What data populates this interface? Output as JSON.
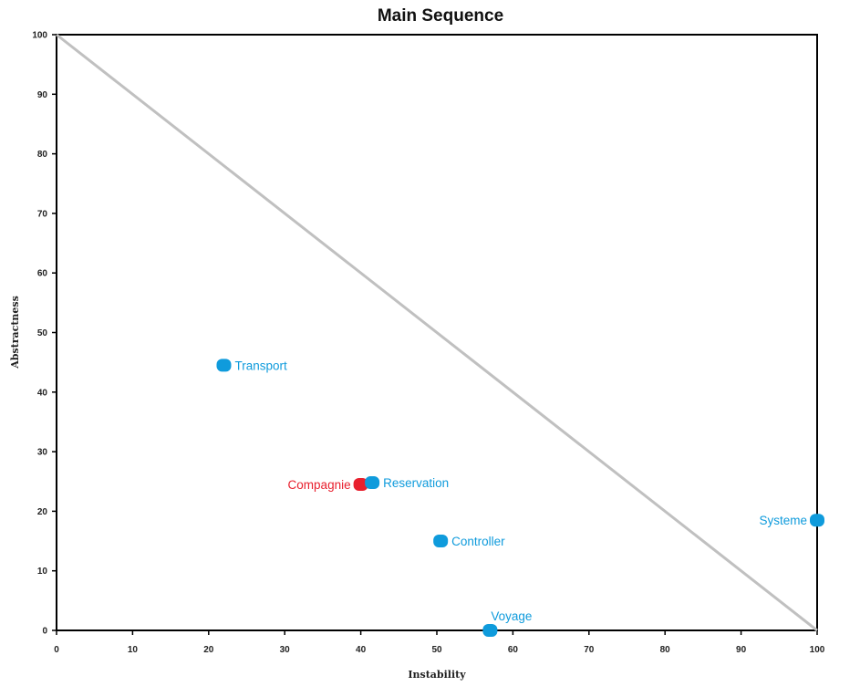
{
  "chart_data": {
    "type": "scatter",
    "title": "Main Sequence",
    "xlabel": "Instability",
    "ylabel": "Abstractness",
    "xlim": [
      0,
      100
    ],
    "ylim": [
      0,
      100
    ],
    "xticks": [
      "0",
      "10",
      "20",
      "30",
      "40",
      "50",
      "60",
      "70",
      "80",
      "90",
      "100"
    ],
    "yticks": [
      "0",
      "10",
      "20",
      "30",
      "40",
      "50",
      "60",
      "70",
      "80",
      "90",
      "100"
    ],
    "grid": false,
    "reference_line": {
      "from": [
        0,
        100
      ],
      "to": [
        100,
        0
      ],
      "color": "#c0c0c0"
    },
    "points": [
      {
        "label": "Transport",
        "x": 22,
        "y": 44.5,
        "color": "#0f9bdc",
        "label_side": "right"
      },
      {
        "label": "Compagnie",
        "x": 40,
        "y": 24.5,
        "color": "#e8202e",
        "label_side": "left"
      },
      {
        "label": "Reservation",
        "x": 41.5,
        "y": 24.8,
        "color": "#0f9bdc",
        "label_side": "right"
      },
      {
        "label": "Controller",
        "x": 50.5,
        "y": 15,
        "color": "#0f9bdc",
        "label_side": "right"
      },
      {
        "label": "Voyage",
        "x": 57,
        "y": 0,
        "color": "#0f9bdc",
        "label_side": "above"
      },
      {
        "label": "Systeme",
        "x": 100,
        "y": 18.5,
        "color": "#0f9bdc",
        "label_side": "left"
      }
    ]
  }
}
